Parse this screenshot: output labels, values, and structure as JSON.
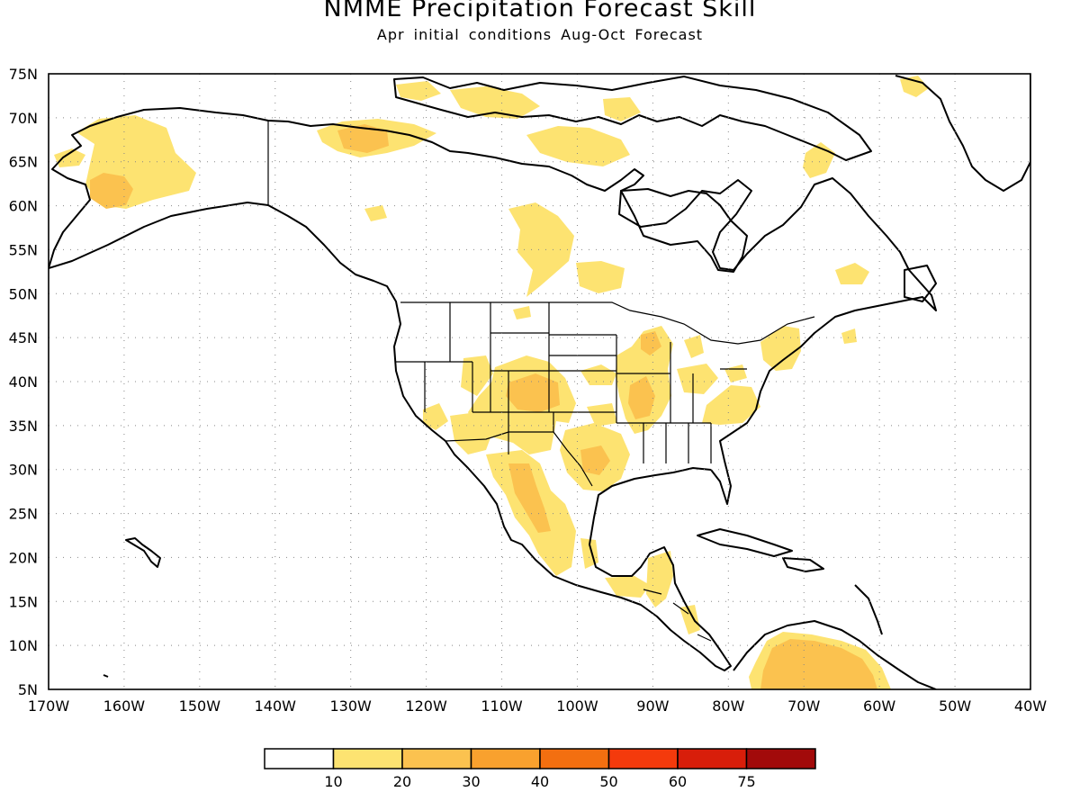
{
  "title": "NMME Precipitation Forecast Skill",
  "subtitle": "Apr initial conditions  Aug-Oct Forecast",
  "map": {
    "lon_range": [
      -170,
      -40
    ],
    "lat_range": [
      5,
      75
    ],
    "lon_ticks": [
      "170W",
      "160W",
      "150W",
      "140W",
      "130W",
      "120W",
      "110W",
      "100W",
      "90W",
      "80W",
      "70W",
      "60W",
      "50W",
      "40W"
    ],
    "lat_ticks": [
      "75N",
      "70N",
      "65N",
      "60N",
      "55N",
      "50N",
      "45N",
      "40N",
      "35N",
      "30N",
      "25N",
      "20N",
      "15N",
      "10N",
      "5N"
    ],
    "grid": "dotted"
  },
  "colorbar": {
    "labels": [
      "10",
      "20",
      "30",
      "40",
      "50",
      "60",
      "75"
    ],
    "colors": [
      "#ffffff",
      "#fde371",
      "#fbc24f",
      "#f9a12e",
      "#f36f10",
      "#f43a0c",
      "#d81e0a",
      "#a20a0a"
    ]
  },
  "skill_regions": [
    {
      "name": "alaska-west",
      "lon": -162,
      "lat": 64,
      "level": 1
    },
    {
      "name": "alaska-southwest",
      "lon": -162,
      "lat": 61,
      "level": 2
    },
    {
      "name": "yukon",
      "lon": -127,
      "lat": 67,
      "level": 2
    },
    {
      "name": "arctic-islands",
      "lon": -108,
      "lat": 71,
      "level": 1
    },
    {
      "name": "hudson-west",
      "lon": -98,
      "lat": 57,
      "level": 1
    },
    {
      "name": "southwest-us",
      "lon": -108,
      "lat": 36,
      "level": 1
    },
    {
      "name": "colorado",
      "lon": -106,
      "lat": 39,
      "level": 2
    },
    {
      "name": "texas",
      "lon": -99,
      "lat": 32,
      "level": 2
    },
    {
      "name": "mississippi-valley",
      "lon": -92,
      "lat": 38,
      "level": 2
    },
    {
      "name": "mexico-west",
      "lon": -106,
      "lat": 26,
      "level": 2
    },
    {
      "name": "venezuela",
      "lon": -68,
      "lat": 8,
      "level": 2
    }
  ]
}
